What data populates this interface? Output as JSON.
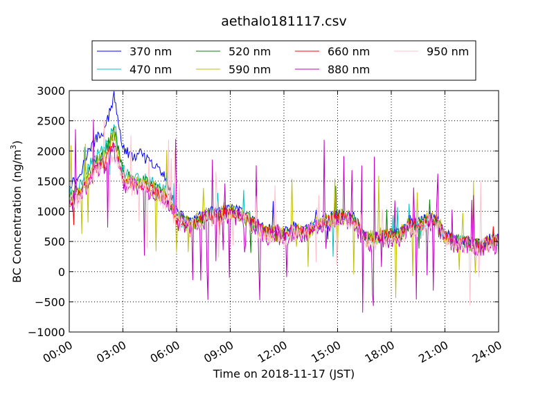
{
  "chart_data": {
    "type": "line",
    "title": "aethalo181117.csv",
    "xlabel": "Time on 2018-11-17 (JST)",
    "ylabel_main": "BC Concentration (ng/m",
    "ylabel_sup": "3",
    "ylabel_close": ")",
    "xlim_hours": [
      0,
      24
    ],
    "ylim": [
      -1000,
      3000
    ],
    "x_ticks": [
      {
        "hour": 0,
        "label": "00:00"
      },
      {
        "hour": 3,
        "label": "03:00"
      },
      {
        "hour": 6,
        "label": "06:00"
      },
      {
        "hour": 9,
        "label": "09:00"
      },
      {
        "hour": 12,
        "label": "12:00"
      },
      {
        "hour": 15,
        "label": "15:00"
      },
      {
        "hour": 18,
        "label": "18:00"
      },
      {
        "hour": 21,
        "label": "21:00"
      },
      {
        "hour": 24,
        "label": "24:00"
      }
    ],
    "y_ticks": [
      {
        "value": 3000,
        "label": "3000"
      },
      {
        "value": 2500,
        "label": "2500"
      },
      {
        "value": 2000,
        "label": "2000"
      },
      {
        "value": 1500,
        "label": "1500"
      },
      {
        "value": 1000,
        "label": "1000"
      },
      {
        "value": 500,
        "label": "500"
      },
      {
        "value": 0,
        "label": "0"
      },
      {
        "value": -500,
        "label": "−500"
      },
      {
        "value": -1000,
        "label": "−1000"
      }
    ],
    "grid": true,
    "legend_position": "top",
    "profile_hours": [
      0,
      0.5,
      1,
      1.5,
      2,
      2.5,
      3,
      3.5,
      4,
      4.5,
      5,
      5.5,
      6,
      6.5,
      7,
      7.5,
      8,
      8.5,
      9,
      9.5,
      10,
      10.5,
      11,
      11.5,
      12,
      12.5,
      13,
      13.5,
      14,
      14.5,
      15,
      15.5,
      16,
      16.5,
      17,
      17.5,
      18,
      18.5,
      19,
      19.5,
      20,
      20.5,
      21,
      21.5,
      22,
      22.5,
      23,
      23.5,
      24
    ],
    "series": [
      {
        "name": "370 nm",
        "color": "#0000ff",
        "profile": [
          1450,
          1550,
          1950,
          2200,
          2350,
          2900,
          2050,
          1900,
          1950,
          1800,
          1700,
          1500,
          1000,
          850,
          850,
          950,
          1000,
          1000,
          1050,
          1000,
          900,
          800,
          700,
          700,
          650,
          750,
          700,
          750,
          850,
          900,
          950,
          950,
          900,
          550,
          550,
          600,
          650,
          650,
          850,
          800,
          900,
          900,
          650,
          550,
          500,
          450,
          450,
          550,
          550
        ],
        "noise": 90,
        "spikes": 0.01,
        "spike_amp": 300
      },
      {
        "name": "470 nm",
        "color": "#00bfbf",
        "profile": [
          1300,
          1400,
          1700,
          1900,
          2050,
          2450,
          1700,
          1550,
          1550,
          1500,
          1400,
          1300,
          900,
          800,
          800,
          900,
          950,
          950,
          1000,
          950,
          850,
          750,
          650,
          650,
          600,
          700,
          650,
          700,
          800,
          850,
          900,
          900,
          850,
          550,
          550,
          600,
          600,
          600,
          800,
          750,
          850,
          850,
          600,
          500,
          500,
          450,
          450,
          500,
          500
        ],
        "noise": 110,
        "spikes": 0.02,
        "spike_amp": 400
      },
      {
        "name": "520 nm",
        "color": "#008000",
        "profile": [
          1250,
          1350,
          1600,
          1800,
          1950,
          2350,
          1650,
          1500,
          1500,
          1450,
          1350,
          1250,
          900,
          800,
          800,
          900,
          950,
          950,
          1000,
          950,
          850,
          750,
          650,
          650,
          600,
          700,
          650,
          700,
          800,
          850,
          900,
          900,
          850,
          550,
          550,
          600,
          600,
          600,
          800,
          750,
          850,
          850,
          600,
          500,
          500,
          450,
          450,
          500,
          500
        ],
        "noise": 120,
        "spikes": 0.03,
        "spike_amp": 450
      },
      {
        "name": "590 nm",
        "color": "#bfbf00",
        "profile": [
          1200,
          1300,
          1550,
          1750,
          1900,
          2300,
          1600,
          1450,
          1450,
          1400,
          1300,
          1200,
          900,
          800,
          800,
          900,
          950,
          950,
          1000,
          950,
          850,
          750,
          650,
          650,
          600,
          700,
          650,
          700,
          800,
          850,
          900,
          900,
          850,
          550,
          550,
          600,
          600,
          600,
          800,
          750,
          850,
          850,
          600,
          500,
          500,
          450,
          450,
          500,
          500
        ],
        "noise": 150,
        "spikes": 0.05,
        "spike_amp": 700
      },
      {
        "name": "660 nm",
        "color": "#ff0000",
        "profile": [
          1150,
          1250,
          1500,
          1700,
          1850,
          2150,
          1550,
          1450,
          1450,
          1400,
          1300,
          1200,
          850,
          800,
          800,
          900,
          950,
          950,
          1000,
          950,
          850,
          750,
          650,
          650,
          600,
          700,
          650,
          700,
          800,
          850,
          900,
          900,
          850,
          550,
          550,
          600,
          600,
          600,
          800,
          750,
          850,
          850,
          600,
          500,
          500,
          450,
          450,
          500,
          500
        ],
        "noise": 90,
        "spikes": 0.01,
        "spike_amp": 300
      },
      {
        "name": "880 nm",
        "color": "#bf00bf",
        "profile": [
          1100,
          1200,
          1450,
          1650,
          1800,
          2050,
          1500,
          1400,
          1400,
          1350,
          1250,
          1150,
          850,
          750,
          750,
          850,
          900,
          900,
          950,
          900,
          800,
          700,
          600,
          650,
          550,
          650,
          600,
          650,
          750,
          800,
          850,
          850,
          800,
          500,
          500,
          550,
          550,
          550,
          750,
          700,
          800,
          800,
          550,
          450,
          450,
          400,
          400,
          450,
          450
        ],
        "noise": 170,
        "spikes": 0.07,
        "spike_amp": 900
      },
      {
        "name": "950 nm",
        "color": "#ffc0cb",
        "profile": [
          1100,
          1200,
          1450,
          1650,
          1800,
          2000,
          1500,
          1400,
          1400,
          1350,
          1250,
          1150,
          850,
          750,
          750,
          850,
          900,
          900,
          950,
          900,
          800,
          700,
          600,
          650,
          550,
          650,
          600,
          650,
          750,
          800,
          850,
          850,
          800,
          500,
          500,
          550,
          550,
          550,
          750,
          700,
          800,
          800,
          550,
          450,
          450,
          400,
          400,
          450,
          450
        ],
        "noise": 160,
        "spikes": 0.05,
        "spike_amp": 800
      }
    ]
  }
}
